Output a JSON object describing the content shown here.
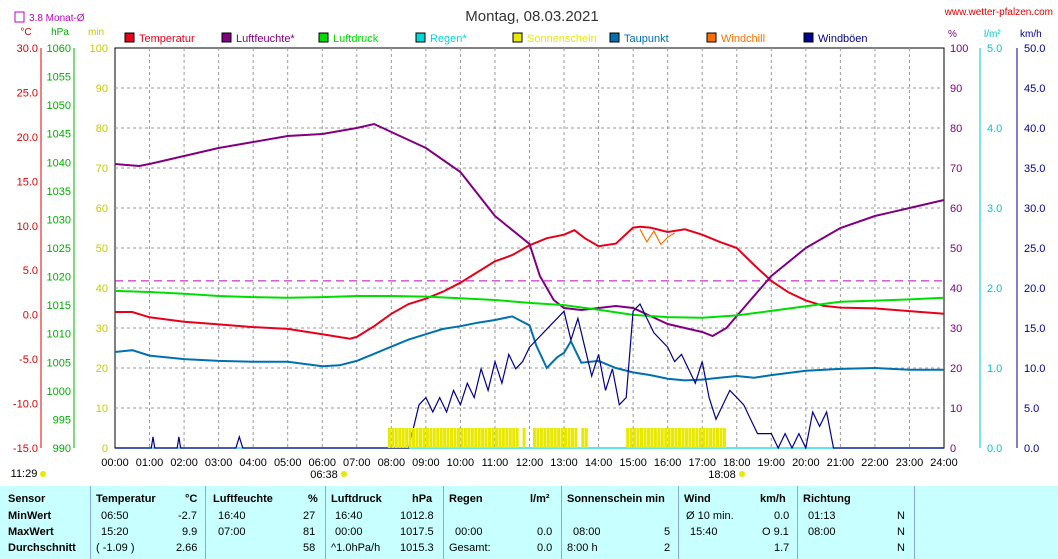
{
  "page": {
    "title": "Montag, 08.03.2021",
    "site": "www.wetter-pfalzen.com",
    "sunrise_label": "06:38",
    "sunset_label": "18:08",
    "moonrise_label": "11:29"
  },
  "axes": {
    "temp_unit": "°C",
    "pres_unit": "hPa",
    "sun_unit": "min",
    "hum_unit": "%",
    "rain_unit": "l/m²",
    "wind_unit": "km/h",
    "avg_label": "3.8 Monat-Ø",
    "temp_ticks": [
      "30.0",
      "25.0",
      "20.0",
      "15.0",
      "10.0",
      "5.0",
      "0.0",
      "-5.0",
      "-10.0",
      "-15.0"
    ],
    "pres_ticks": [
      "1060",
      "1055",
      "1050",
      "1045",
      "1040",
      "1035",
      "1030",
      "1025",
      "1020",
      "1015",
      "1010",
      "1005",
      "1000",
      "995",
      "990"
    ],
    "sun_ticks": [
      "100",
      "90",
      "80",
      "70",
      "60",
      "50",
      "40",
      "30",
      "20",
      "10",
      "0"
    ],
    "hum_ticks": [
      "100",
      "90",
      "80",
      "70",
      "60",
      "50",
      "40",
      "30",
      "20",
      "10",
      "0"
    ],
    "rain_ticks": [
      "5.0",
      "4.0",
      "3.0",
      "2.0",
      "1.0",
      "0.0"
    ],
    "wind_ticks": [
      "50.0",
      "45.0",
      "40.0",
      "35.0",
      "30.0",
      "25.0",
      "20.0",
      "15.0",
      "10.0",
      "5.0",
      "0.0"
    ],
    "x_ticks": [
      "00:00",
      "01:00",
      "02:00",
      "03:00",
      "04:00",
      "05:00",
      "06:00",
      "07:00",
      "08:00",
      "09:00",
      "10:00",
      "11:00",
      "12:00",
      "13:00",
      "14:00",
      "15:00",
      "16:00",
      "17:00",
      "18:00",
      "19:00",
      "20:00",
      "21:00",
      "22:00",
      "23:00",
      "24:00"
    ]
  },
  "legend": [
    {
      "label": "Temperatur",
      "color": "#e8001a"
    },
    {
      "label": "Luftfeuchte*",
      "color": "#800080"
    },
    {
      "label": "Luftdruck",
      "color": "#00dd00"
    },
    {
      "label": "Regen*",
      "color": "#00d8d8"
    },
    {
      "label": "Sonnenschein",
      "color": "#e8e800"
    },
    {
      "label": "Taupunkt",
      "color": "#0070b0"
    },
    {
      "label": "Windchill",
      "color": "#ff7000"
    },
    {
      "label": "Windböen",
      "color": "#000090"
    }
  ],
  "chart_data": {
    "type": "line",
    "title": "Montag, 08.03.2021",
    "x_unit": "hour of day",
    "xlim": [
      0,
      24
    ],
    "reference_line": {
      "name": "3.8 Monat-Ø",
      "axis": "temperature",
      "value": 3.8
    },
    "series": [
      {
        "name": "Temperatur",
        "unit": "°C",
        "ylim": [
          -15,
          30
        ],
        "x": [
          0,
          0.5,
          1,
          2,
          3,
          4,
          5,
          6,
          6.8,
          7,
          7.5,
          8,
          8.5,
          9,
          9.5,
          10,
          10.5,
          11,
          11.5,
          12,
          12.5,
          13,
          13.3,
          13.6,
          14,
          14.5,
          15,
          15.2,
          15.5,
          16,
          16.5,
          17,
          17.5,
          18,
          18.5,
          19,
          19.5,
          20,
          20.5,
          21,
          22,
          23,
          24
        ],
        "y": [
          0.3,
          0.3,
          -0.3,
          -0.8,
          -1.1,
          -1.4,
          -1.6,
          -2.2,
          -2.7,
          -2.5,
          -1.3,
          0.1,
          1.2,
          1.8,
          2.6,
          3.6,
          4.8,
          6,
          6.7,
          7.8,
          8.6,
          9.0,
          9.5,
          8.6,
          7.7,
          8.0,
          9.8,
          9.9,
          9.8,
          9.3,
          9.6,
          9.0,
          8.2,
          7.5,
          5.6,
          3.8,
          2.5,
          1.6,
          1.0,
          0.8,
          0.7,
          0.4,
          0.1
        ]
      },
      {
        "name": "Luftfeuchte*",
        "unit": "%",
        "ylim": [
          0,
          100
        ],
        "x": [
          0,
          0.7,
          1,
          2,
          3,
          4,
          5,
          6,
          7,
          7.5,
          8,
          9,
          10,
          11,
          12,
          12.3,
          12.7,
          13,
          13.5,
          14,
          14.5,
          15,
          15.5,
          16,
          16.5,
          17,
          17.3,
          17.7,
          18,
          18.5,
          19,
          20,
          21,
          22,
          23,
          24
        ],
        "y": [
          71,
          70.5,
          71,
          73,
          75,
          76.5,
          78,
          78.5,
          80,
          81,
          79,
          75,
          69,
          58,
          51,
          43,
          37,
          35,
          34.5,
          35,
          35.5,
          35,
          33,
          31,
          30,
          29,
          28,
          30,
          33,
          38,
          43,
          50,
          55,
          58,
          60,
          62
        ]
      },
      {
        "name": "Luftdruck",
        "unit": "hPa",
        "ylim": [
          990,
          1060
        ],
        "x": [
          0,
          1,
          2,
          3,
          4,
          5,
          6,
          7,
          8,
          9,
          10,
          11,
          12,
          13,
          14,
          15,
          16,
          17,
          18,
          19,
          20,
          21,
          22,
          23,
          24
        ],
        "y": [
          1017.5,
          1017.3,
          1017.0,
          1016.6,
          1016.4,
          1016.3,
          1016.4,
          1016.6,
          1016.6,
          1016.5,
          1016.2,
          1015.9,
          1015.4,
          1015.0,
          1014.2,
          1013.3,
          1012.9,
          1012.8,
          1013.2,
          1014.0,
          1014.8,
          1015.6,
          1015.8,
          1016.0,
          1016.3
        ]
      },
      {
        "name": "Regen*",
        "unit": "l/m²",
        "ylim": [
          0,
          5
        ],
        "x": [
          0,
          24
        ],
        "y": [
          0,
          0
        ]
      },
      {
        "name": "Taupunkt",
        "unit": "°C",
        "ylim": [
          -15,
          30
        ],
        "x": [
          0,
          0.5,
          1,
          2,
          3,
          4,
          5,
          6,
          6.5,
          7,
          7.5,
          8,
          8.5,
          9,
          9.5,
          10,
          10.5,
          11,
          11.5,
          12,
          12.2,
          12.5,
          12.8,
          13,
          13.2,
          13.5,
          14,
          14.5,
          15,
          15.5,
          16,
          16.5,
          17,
          17.5,
          18,
          18.5,
          19,
          20,
          21,
          22,
          23,
          24
        ],
        "y": [
          -4.2,
          -4.0,
          -4.6,
          -5.0,
          -5.2,
          -5.3,
          -5.3,
          -5.8,
          -5.7,
          -5.2,
          -4.4,
          -3.6,
          -2.8,
          -2.2,
          -1.6,
          -1.3,
          -0.9,
          -0.6,
          -0.2,
          -1.2,
          -3.5,
          -6.0,
          -4.8,
          -4.3,
          -3.0,
          -5.4,
          -5.2,
          -6.0,
          -6.5,
          -6.8,
          -7.2,
          -7.4,
          -7.3,
          -7.1,
          -6.9,
          -7.1,
          -6.8,
          -6.3,
          -6.1,
          -6.0,
          -6.2,
          -6.2
        ]
      },
      {
        "name": "Windchill",
        "unit": "°C",
        "ylim": [
          -15,
          30
        ],
        "x": [
          15.2,
          15.4,
          15.6,
          15.8,
          16.0,
          16.2
        ],
        "y": [
          9.6,
          8.2,
          9.4,
          7.9,
          8.7,
          9.2
        ]
      },
      {
        "name": "Windböen",
        "unit": "km/h",
        "ylim": [
          0,
          50
        ],
        "x": [
          0,
          1.05,
          1.1,
          1.15,
          1.8,
          1.85,
          1.9,
          3.5,
          3.6,
          3.7,
          8.5,
          8.8,
          9,
          9.2,
          9.4,
          9.6,
          9.8,
          10,
          10.2,
          10.4,
          10.6,
          10.8,
          11,
          11.2,
          11.4,
          11.6,
          11.8,
          12,
          12.2,
          12.4,
          12.6,
          12.8,
          13,
          13.2,
          13.4,
          13.6,
          13.8,
          14,
          14.2,
          14.4,
          14.6,
          14.8,
          15,
          15.2,
          15.4,
          15.6,
          15.8,
          16,
          16.2,
          16.4,
          16.6,
          16.8,
          17,
          17.2,
          17.4,
          17.6,
          17.8,
          18,
          18.2,
          18.4,
          18.6,
          19,
          19.2,
          19.4,
          19.6,
          19.8,
          20,
          20.2,
          20.4,
          20.6,
          20.8,
          24
        ],
        "y": [
          0,
          0,
          1.4,
          0,
          0,
          1.4,
          0,
          0,
          1.4,
          0,
          0,
          5.4,
          6.3,
          4.5,
          6.3,
          4.5,
          7.2,
          5.4,
          8.1,
          6.3,
          9.9,
          7.2,
          10.8,
          8.1,
          11.7,
          9.9,
          10.8,
          12.6,
          13.5,
          14.4,
          15.3,
          16.2,
          17.1,
          13.5,
          16.2,
          12.6,
          9,
          11.7,
          7.2,
          9.9,
          5.4,
          6.3,
          17.1,
          18,
          16.2,
          14.4,
          13.5,
          12.6,
          10.8,
          11.7,
          9.9,
          8.1,
          10.8,
          6.3,
          3.6,
          5.4,
          7.2,
          6.3,
          5.4,
          3.6,
          1.8,
          1.8,
          0,
          1.8,
          0,
          1.8,
          0,
          4.5,
          2.7,
          4.5,
          0,
          0
        ]
      },
      {
        "name": "Sonnenschein",
        "unit": "min",
        "ylim": [
          0,
          100
        ],
        "x": [
          7.9,
          8.0,
          8.1,
          8.2,
          8.3,
          8.4,
          8.5,
          8.6,
          8.7,
          8.8,
          8.9,
          9.0,
          9.1,
          9.2,
          9.3,
          9.4,
          9.5,
          9.6,
          9.7,
          9.8,
          9.9,
          10.0,
          10.1,
          10.2,
          10.3,
          10.4,
          10.5,
          10.6,
          10.7,
          10.8,
          10.9,
          11.0,
          11.1,
          11.2,
          11.3,
          11.4,
          11.5,
          11.6,
          11.8,
          12.1,
          12.2,
          12.3,
          12.4,
          12.5,
          12.6,
          12.7,
          12.8,
          12.9,
          13.0,
          13.1,
          13.2,
          13.3,
          13.5,
          13.6,
          14.8,
          14.9,
          15.0,
          15.1,
          15.2,
          15.3,
          15.4,
          15.5,
          15.6,
          15.7,
          15.8,
          15.9,
          16.0,
          16.1,
          16.2,
          16.3,
          16.4,
          16.5,
          16.6,
          16.7,
          16.8,
          16.9,
          17.0,
          17.1,
          17.2,
          17.3,
          17.4,
          17.5,
          17.6
        ],
        "y": [
          5,
          5,
          5,
          5,
          5,
          5,
          5,
          5,
          5,
          5,
          5,
          5,
          5,
          5,
          5,
          5,
          5,
          5,
          5,
          5,
          5,
          5,
          5,
          5,
          5,
          5,
          5,
          5,
          5,
          5,
          5,
          5,
          5,
          5,
          5,
          5,
          5,
          5,
          5,
          5,
          5,
          5,
          5,
          5,
          5,
          5,
          5,
          5,
          5,
          5,
          5,
          5,
          5,
          5,
          5,
          5,
          5,
          5,
          5,
          5,
          5,
          5,
          5,
          5,
          5,
          5,
          5,
          5,
          5,
          5,
          5,
          5,
          5,
          5,
          5,
          5,
          5,
          5,
          5,
          5,
          5,
          5,
          5
        ]
      }
    ]
  },
  "stats": {
    "headers": {
      "sensor": "Sensor",
      "temperatur": "Temperatur",
      "temp_unit": "°C",
      "luftfeuchte": "Luftfeuchte",
      "hum_unit": "%",
      "luftdruck": "Luftdruck",
      "pres_unit": "hPa",
      "regen": "Regen",
      "rain_unit": "l/m²",
      "sonnenschein": "Sonnenschein min",
      "wind": "Wind",
      "wind_unit": "km/h",
      "richtung": "Richtung"
    },
    "rows": [
      {
        "label": "MinWert",
        "t_time": "06:50",
        "t_val": "-2.7",
        "h_time": "16:40",
        "h_val": "27",
        "p_time": "16:40",
        "p_val": "1012.8",
        "r_time": "",
        "r_val": "",
        "s_time": "",
        "s_val": "",
        "w_label": "Ø 10 min.",
        "w_val": "0.0",
        "d_time": "01:13",
        "d_val": "N"
      },
      {
        "label": "MaxWert",
        "t_time": "15:20",
        "t_val": "9.9",
        "h_time": "07:00",
        "h_val": "81",
        "p_time": "00:00",
        "p_val": "1017.5",
        "r_time": "00:00",
        "r_val": "0.0",
        "s_time": "08:00",
        "s_val": "5",
        "w_label": "15:40",
        "w_val": "O 9.1",
        "d_time": "08:00",
        "d_val": "N"
      },
      {
        "label": "Durchschnitt",
        "t_time": "( -1.09 )",
        "t_val": "2.66",
        "h_time": "",
        "h_val": "58",
        "p_time": "^1.0hPa/h",
        "p_val": "1015.3",
        "r_time": "Gesamt:",
        "r_val": "0.0",
        "s_time": "8:00 h",
        "s_val": "2",
        "w_label": "",
        "w_val": "1.7",
        "d_time": "",
        "d_val": "N"
      }
    ]
  }
}
